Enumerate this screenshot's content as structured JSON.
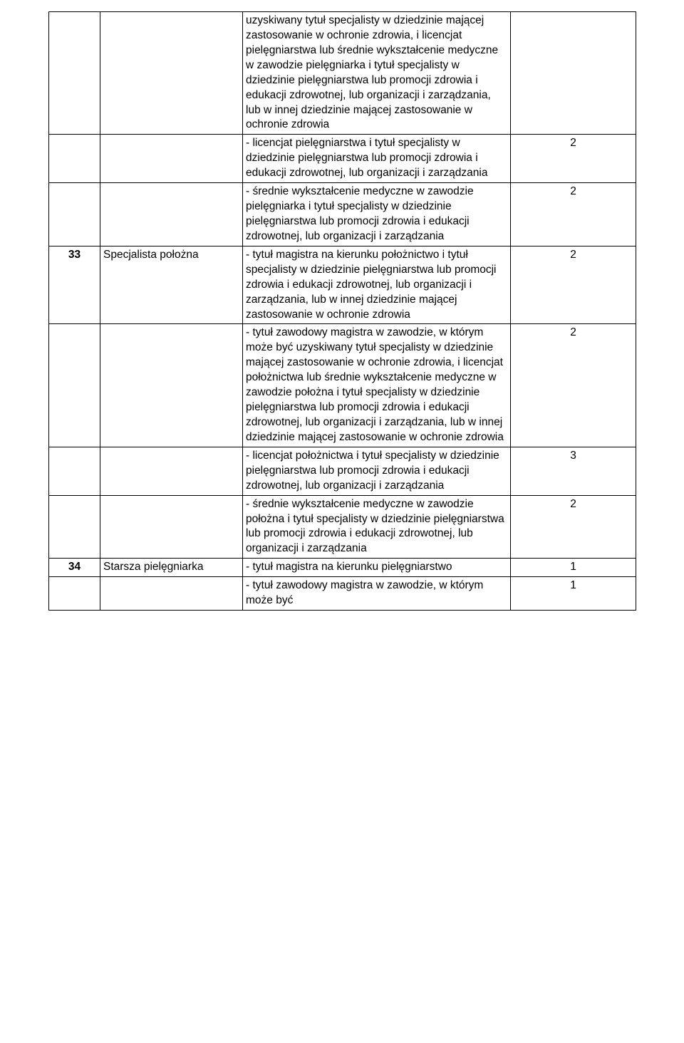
{
  "table": {
    "rows": [
      {
        "num": "",
        "title": "",
        "desc": "uzyskiwany tytuł specjalisty w dziedzinie mającej zastosowanie w ochronie zdrowia, i licencjat pielęgniarstwa lub średnie wykształcenie medyczne w zawodzie pielęgniarka i tytuł specjalisty w dziedzinie pielęgniarstwa lub promocji zdrowia i edukacji zdrowotnej, lub organizacji i zarządzania, lub w innej dziedzinie mającej zastosowanie w ochronie zdrowia",
        "val": ""
      },
      {
        "num": "",
        "title": "",
        "desc": "- licencjat pielęgniarstwa i tytuł specjalisty w dziedzinie pielęgniarstwa lub promocji zdrowia i edukacji zdrowotnej, lub organizacji i zarządzania",
        "val": "2"
      },
      {
        "num": "",
        "title": "",
        "desc": "- średnie wykształcenie medyczne w zawodzie pielęgniarka i tytuł specjalisty w dziedzinie pielęgniarstwa lub promocji zdrowia i edukacji zdrowotnej, lub organizacji i zarządzania",
        "val": "2"
      },
      {
        "num": "33",
        "title": "Specjalista położna",
        "desc": "- tytuł magistra na kierunku położnictwo i tytuł specjalisty w dziedzinie pielęgniarstwa lub promocji zdrowia i edukacji zdrowotnej, lub organizacji i zarządzania, lub w innej dziedzinie mającej zastosowanie w ochronie zdrowia",
        "val": "2"
      },
      {
        "num": "",
        "title": "",
        "desc": "- tytuł zawodowy magistra w zawodzie, w którym może być uzyskiwany tytuł specjalisty w dziedzinie mającej zastosowanie w ochronie zdrowia, i licencjat położnictwa lub średnie wykształcenie medyczne w zawodzie położna i tytuł specjalisty w dziedzinie pielęgniarstwa lub promocji zdrowia i edukacji zdrowotnej, lub organizacji i zarządzania, lub w innej dziedzinie mającej zastosowanie w ochronie zdrowia",
        "val": "2"
      },
      {
        "num": "",
        "title": "",
        "desc": "- licencjat położnictwa i tytuł specjalisty w dziedzinie pielęgniarstwa lub promocji zdrowia i edukacji zdrowotnej, lub organizacji i zarządzania",
        "val": "3"
      },
      {
        "num": "",
        "title": "",
        "desc": "- średnie wykształcenie medyczne w zawodzie położna i tytuł specjalisty w dziedzinie pielęgniarstwa lub promocji zdrowia i edukacji zdrowotnej, lub organizacji i zarządzania",
        "val": "2"
      },
      {
        "num": "34",
        "title": "Starsza pielęgniarka",
        "desc": "- tytuł magistra na kierunku pielęgniarstwo",
        "val": "1"
      },
      {
        "num": "",
        "title": "",
        "desc": "- tytuł zawodowy magistra w zawodzie, w którym może być",
        "val": "1"
      }
    ]
  }
}
